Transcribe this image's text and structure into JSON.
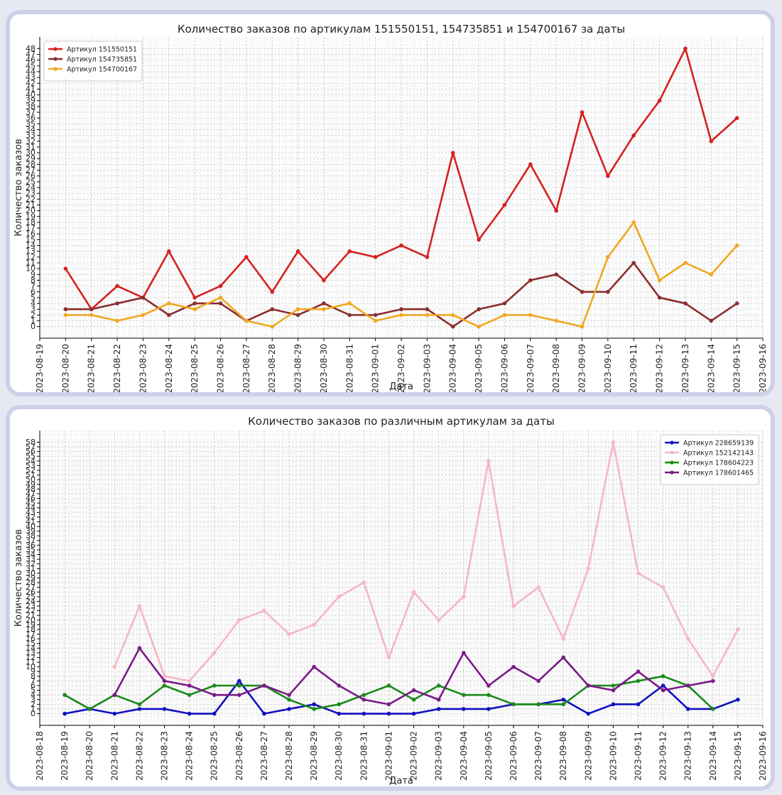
{
  "chart_data": [
    {
      "type": "line",
      "title": "Количество заказов по артикулам 151550151, 154735851 и 154700167 за даты",
      "xlabel": "Дата",
      "ylabel": "Количество заказов",
      "x_ticks": [
        "2023-08-19",
        "2023-08-20",
        "2023-08-21",
        "2023-08-22",
        "2023-08-23",
        "2023-08-24",
        "2023-08-25",
        "2023-08-26",
        "2023-08-27",
        "2023-08-28",
        "2023-08-29",
        "2023-08-30",
        "2023-08-31",
        "2023-09-01",
        "2023-09-02",
        "2023-09-03",
        "2023-09-04",
        "2023-09-05",
        "2023-09-06",
        "2023-09-07",
        "2023-09-08",
        "2023-09-09",
        "2023-09-10",
        "2023-09-11",
        "2023-09-12",
        "2023-09-13",
        "2023-09-14",
        "2023-09-15",
        "2023-09-16"
      ],
      "y_ticks": [
        0,
        1,
        2,
        3,
        4,
        5,
        6,
        7,
        8,
        9,
        10,
        11,
        12,
        13,
        14,
        15,
        16,
        17,
        18,
        19,
        20,
        21,
        22,
        23,
        24,
        25,
        26,
        27,
        28,
        29,
        30,
        31,
        32,
        33,
        34,
        35,
        36,
        37,
        38,
        39,
        40,
        41,
        42,
        43,
        44,
        45,
        46,
        47,
        48
      ],
      "ylim": [
        -2,
        50
      ],
      "grid": true,
      "legend_position": "top-left",
      "x": [
        "2023-08-20",
        "2023-08-21",
        "2023-08-22",
        "2023-08-23",
        "2023-08-24",
        "2023-08-25",
        "2023-08-26",
        "2023-08-27",
        "2023-08-28",
        "2023-08-29",
        "2023-08-30",
        "2023-08-31",
        "2023-09-01",
        "2023-09-02",
        "2023-09-03",
        "2023-09-04",
        "2023-09-05",
        "2023-09-06",
        "2023-09-07",
        "2023-09-08",
        "2023-09-09",
        "2023-09-10",
        "2023-09-11",
        "2023-09-12",
        "2023-09-13",
        "2023-09-14",
        "2023-09-15"
      ],
      "series": [
        {
          "name": "Артикул 151550151",
          "color": "#d62020",
          "values": [
            10,
            3,
            7,
            5,
            13,
            5,
            7,
            12,
            6,
            13,
            8,
            13,
            12,
            14,
            12,
            30,
            15,
            21,
            28,
            20,
            37,
            26,
            33,
            39,
            48,
            32,
            36
          ]
        },
        {
          "name": "Артикул 154735851",
          "color": "#8b2e2e",
          "values": [
            3,
            3,
            4,
            5,
            2,
            4,
            4,
            1,
            3,
            2,
            4,
            2,
            2,
            3,
            3,
            0,
            3,
            4,
            8,
            9,
            6,
            6,
            11,
            5,
            4,
            1,
            4
          ]
        },
        {
          "name": "Артикул 154700167",
          "color": "#f0a820",
          "values": [
            2,
            2,
            1,
            2,
            4,
            3,
            5,
            1,
            0,
            3,
            3,
            4,
            1,
            2,
            2,
            2,
            0,
            2,
            2,
            1,
            0,
            12,
            18,
            8,
            11,
            9,
            14
          ]
        }
      ]
    },
    {
      "type": "line",
      "title": "Количество заказов по различным артикулам за даты",
      "xlabel": "Дата",
      "ylabel": "Количество заказов",
      "x_ticks": [
        "2023-08-18",
        "2023-08-19",
        "2023-08-20",
        "2023-08-21",
        "2023-08-22",
        "2023-08-23",
        "2023-08-24",
        "2023-08-25",
        "2023-08-26",
        "2023-08-27",
        "2023-08-28",
        "2023-08-29",
        "2023-08-30",
        "2023-08-31",
        "2023-09-01",
        "2023-09-02",
        "2023-09-03",
        "2023-09-04",
        "2023-09-05",
        "2023-09-06",
        "2023-09-07",
        "2023-09-08",
        "2023-09-09",
        "2023-09-10",
        "2023-09-11",
        "2023-09-12",
        "2023-09-13",
        "2023-09-14",
        "2023-09-15",
        "2023-09-16"
      ],
      "y_ticks": [
        0,
        1,
        2,
        3,
        4,
        5,
        6,
        7,
        8,
        9,
        10,
        11,
        12,
        13,
        14,
        15,
        16,
        17,
        18,
        19,
        20,
        21,
        22,
        23,
        24,
        25,
        26,
        27,
        28,
        29,
        30,
        31,
        32,
        33,
        34,
        35,
        36,
        37,
        38,
        39,
        40,
        41,
        42,
        43,
        44,
        45,
        46,
        47,
        48,
        49,
        50,
        51,
        52,
        53,
        54,
        55,
        56,
        57,
        58
      ],
      "ylim": [
        -2.5,
        60.5
      ],
      "grid": true,
      "legend_position": "top-right",
      "series": [
        {
          "name": "Артикул 228659139",
          "color": "#1111c0",
          "x": [
            "2023-08-19",
            "2023-08-20",
            "2023-08-21",
            "2023-08-22",
            "2023-08-23",
            "2023-08-24",
            "2023-08-25",
            "2023-08-26",
            "2023-08-27",
            "2023-08-28",
            "2023-08-29",
            "2023-08-30",
            "2023-08-31",
            "2023-09-01",
            "2023-09-02",
            "2023-09-03",
            "2023-09-04",
            "2023-09-05",
            "2023-09-06",
            "2023-09-07",
            "2023-09-08",
            "2023-09-09",
            "2023-09-10",
            "2023-09-11",
            "2023-09-12",
            "2023-09-13",
            "2023-09-14",
            "2023-09-15"
          ],
          "values": [
            0,
            1,
            0,
            1,
            1,
            0,
            0,
            7,
            0,
            1,
            2,
            0,
            0,
            0,
            0,
            1,
            1,
            1,
            2,
            2,
            3,
            0,
            2,
            2,
            6,
            1,
            1,
            3
          ]
        },
        {
          "name": "Артикул 152142143",
          "color": "#f6b7c4",
          "x": [
            "2023-08-21",
            "2023-08-22",
            "2023-08-23",
            "2023-08-24",
            "2023-08-25",
            "2023-08-26",
            "2023-08-27",
            "2023-08-28",
            "2023-08-29",
            "2023-08-30",
            "2023-08-31",
            "2023-09-01",
            "2023-09-02",
            "2023-09-03",
            "2023-09-04",
            "2023-09-05",
            "2023-09-06",
            "2023-09-07",
            "2023-09-08",
            "2023-09-09",
            "2023-09-10",
            "2023-09-11",
            "2023-09-12",
            "2023-09-13",
            "2023-09-14",
            "2023-09-15"
          ],
          "values": [
            10,
            23,
            8,
            7,
            13,
            20,
            22,
            17,
            19,
            25,
            28,
            12,
            26,
            20,
            25,
            54,
            23,
            27,
            16,
            31,
            58,
            30,
            27,
            16,
            8,
            18
          ]
        },
        {
          "name": "Артикул 178604223",
          "color": "#1a8a1a",
          "x": [
            "2023-08-19",
            "2023-08-20",
            "2023-08-21",
            "2023-08-22",
            "2023-08-23",
            "2023-08-24",
            "2023-08-25",
            "2023-08-26",
            "2023-08-27",
            "2023-08-28",
            "2023-08-29",
            "2023-08-30",
            "2023-08-31",
            "2023-09-01",
            "2023-09-02",
            "2023-09-03",
            "2023-09-04",
            "2023-09-05",
            "2023-09-06",
            "2023-09-07",
            "2023-09-08",
            "2023-09-09",
            "2023-09-10",
            "2023-09-11",
            "2023-09-12",
            "2023-09-13",
            "2023-09-14"
          ],
          "values": [
            4,
            1,
            4,
            2,
            6,
            4,
            6,
            6,
            6,
            3,
            1,
            2,
            4,
            6,
            3,
            6,
            4,
            4,
            2,
            2,
            2,
            6,
            6,
            7,
            8,
            6,
            1
          ]
        },
        {
          "name": "Артикул 178601465",
          "color": "#7a1a88",
          "x": [
            "2023-08-21",
            "2023-08-22",
            "2023-08-23",
            "2023-08-24",
            "2023-08-25",
            "2023-08-26",
            "2023-08-27",
            "2023-08-28",
            "2023-08-29",
            "2023-08-30",
            "2023-08-31",
            "2023-09-01",
            "2023-09-02",
            "2023-09-03",
            "2023-09-04",
            "2023-09-05",
            "2023-09-06",
            "2023-09-07",
            "2023-09-08",
            "2023-09-09",
            "2023-09-10",
            "2023-09-11",
            "2023-09-12",
            "2023-09-13",
            "2023-09-14"
          ],
          "values": [
            4,
            14,
            7,
            6,
            4,
            4,
            6,
            4,
            10,
            6,
            3,
            2,
            5,
            3,
            13,
            6,
            10,
            7,
            12,
            6,
            5,
            9,
            5,
            6,
            7
          ]
        }
      ]
    }
  ]
}
